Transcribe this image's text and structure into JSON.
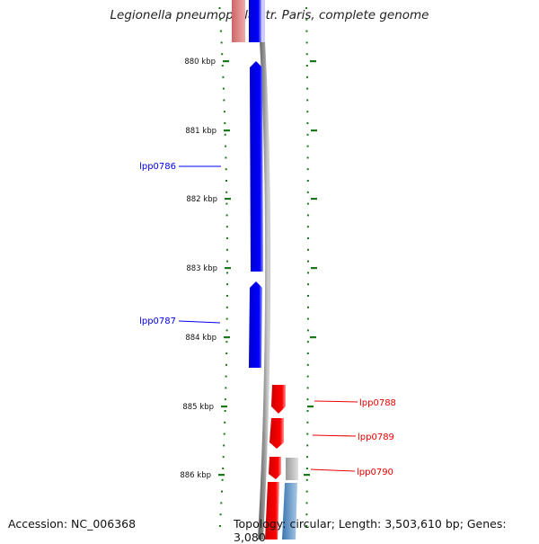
{
  "header": {
    "title": "Legionella pneumophila str. Paris, complete genome"
  },
  "footer": {
    "accession": "Accession: NC_006368",
    "topology": "Topology: circular; Length: 3,503,610 bp; Genes: 3,080"
  },
  "ticks": [
    "880 kbp",
    "881 kbp",
    "882 kbp",
    "883 kbp",
    "884 kbp",
    "885 kbp",
    "886 kbp"
  ],
  "gene_labels": [
    {
      "name": "lpp0786",
      "strand": "reverse"
    },
    {
      "name": "lpp0787",
      "strand": "reverse"
    },
    {
      "name": "lpp0788",
      "strand": "forward"
    },
    {
      "name": "lpp0789",
      "strand": "forward"
    },
    {
      "name": "lpp0790",
      "strand": "forward"
    }
  ],
  "colors": {
    "reverse": "#0000ee",
    "forward": "#ee0000",
    "backbone": "#888888",
    "dots": "#1a7a1a",
    "pink": "#e06a6a",
    "steelblue": "#4a86c0",
    "grey": "#b0b0b0"
  }
}
